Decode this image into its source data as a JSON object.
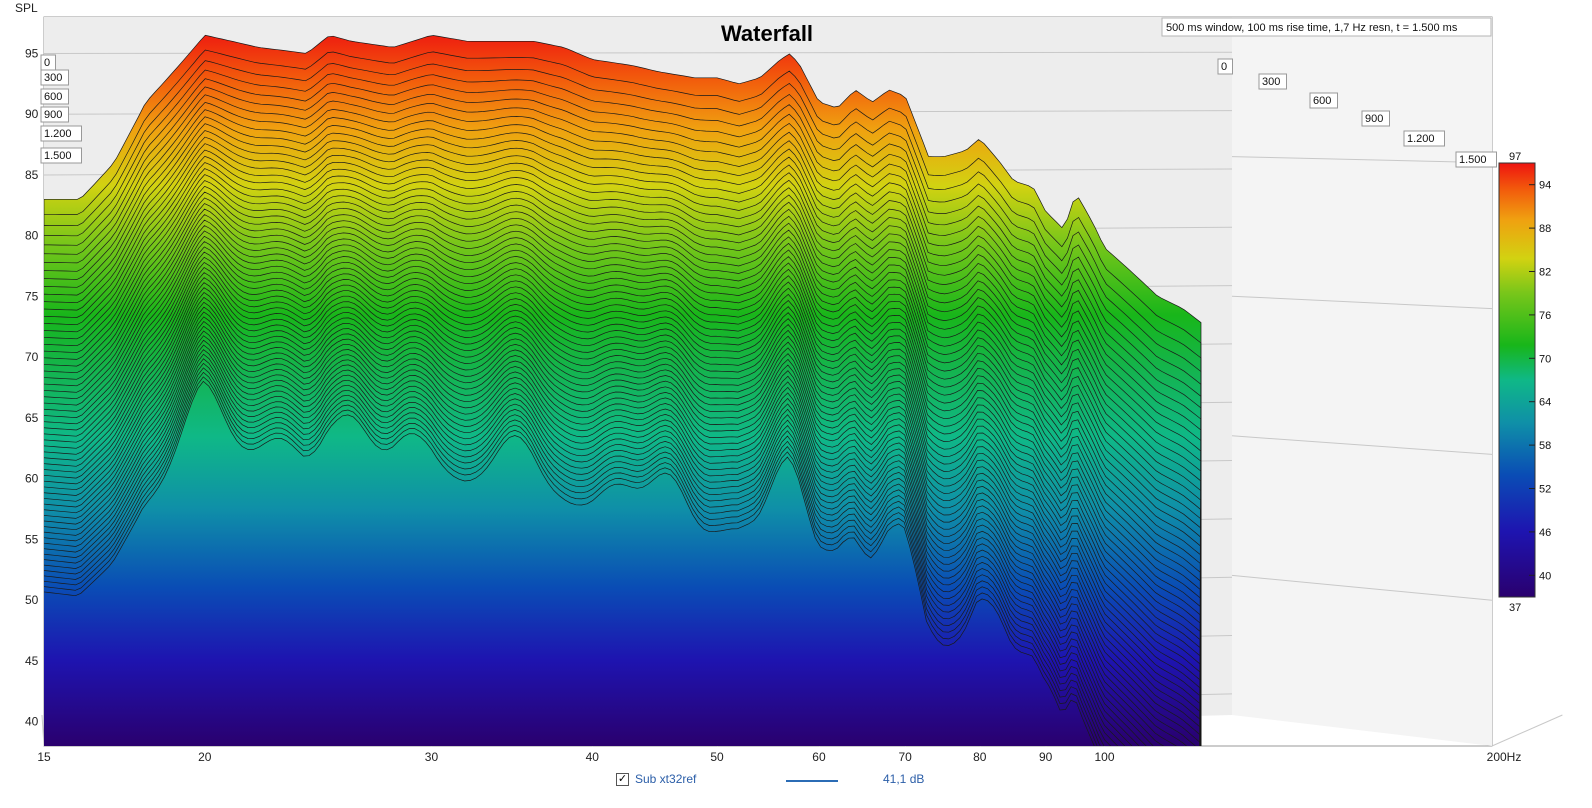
{
  "chart_data": {
    "type": "area",
    "title": "Waterfall",
    "info": "500 ms window, 100 ms rise time,  1,7 Hz resn, t = 1.500 ms",
    "ylabel": "SPL",
    "xunit": "Hz",
    "xscale": "log",
    "xlim": [
      15,
      200
    ],
    "ylim": [
      38,
      98
    ],
    "x_ticks": [
      "15",
      "20",
      "30",
      "40",
      "50",
      "60",
      "70",
      "80",
      "90",
      "100",
      "200Hz"
    ],
    "x_tick_values": [
      15,
      20,
      30,
      40,
      50,
      60,
      70,
      80,
      90,
      100,
      200
    ],
    "y_ticks": [
      "95",
      "90",
      "85",
      "80",
      "75",
      "70",
      "65",
      "60",
      "55",
      "50",
      "45",
      "40"
    ],
    "y_tick_values": [
      95,
      90,
      85,
      80,
      75,
      70,
      65,
      60,
      55,
      50,
      45,
      40
    ],
    "time_labels_left": [
      "0",
      "300",
      "600",
      "900",
      "1.200",
      "1.500"
    ],
    "time_labels_right": [
      "0",
      "300",
      "600",
      "900",
      "1.200",
      "1.500"
    ],
    "colorbar": {
      "top": "97",
      "bottom": "37",
      "ticks": [
        "94",
        "88",
        "82",
        "76",
        "70",
        "64",
        "58",
        "52",
        "46",
        "40"
      ]
    },
    "series": [
      {
        "time": 0,
        "x": [
          15,
          16,
          17,
          18,
          20,
          21,
          22,
          24,
          25,
          26,
          28,
          30,
          32,
          34,
          36,
          38,
          40,
          43,
          45,
          48,
          50,
          52,
          54,
          56,
          57,
          58,
          60,
          62,
          64,
          66,
          68,
          70,
          73,
          75,
          78,
          80,
          83,
          85,
          88,
          90,
          93,
          95,
          98,
          100,
          105,
          110,
          115,
          120
        ],
        "y": [
          83,
          83,
          86,
          91,
          96.5,
          96,
          95.5,
          95,
          96.5,
          96,
          95.5,
          96.5,
          96,
          96,
          96,
          95.5,
          94.5,
          94,
          93.5,
          93,
          93,
          92.5,
          93,
          94.5,
          95,
          94,
          91,
          90.5,
          92,
          91,
          92,
          91.5,
          86.5,
          86.5,
          87,
          88,
          86,
          84.5,
          84,
          82,
          80.5,
          83.5,
          81,
          79,
          77,
          75,
          74,
          72.5
        ]
      }
    ]
  },
  "legend": {
    "checkbox": "✓",
    "name": "Sub xt32ref",
    "value": "41,1 dB",
    "color": "#2b6cb5"
  }
}
